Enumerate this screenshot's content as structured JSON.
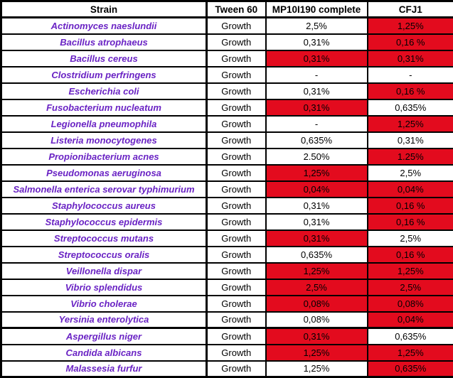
{
  "colors": {
    "highlight_red": "#e30b1e",
    "strain_purple": "#6a23c4",
    "border_black": "#000000",
    "background": "#ffffff"
  },
  "chart_data": {
    "type": "table",
    "title": "Strain growth / inhibition concentrations",
    "columns": [
      "Strain",
      "Tween 60",
      "MP10I190 complete",
      "CFJ1"
    ],
    "highlight_color": "#e30b1e",
    "highlight_meaning": "red-filled cell",
    "rows": [
      {
        "strain": "Actinomyces naeslundii",
        "tween_60": "Growth",
        "mp10i190": "2,5%",
        "mp10i190_red": false,
        "cfj1": "1,25%",
        "cfj1_red": true,
        "group": "bacteria"
      },
      {
        "strain": "Bacillus atrophaeus",
        "tween_60": "Growth",
        "mp10i190": "0,31%",
        "mp10i190_red": false,
        "cfj1": "0,16 %",
        "cfj1_red": true,
        "group": "bacteria"
      },
      {
        "strain": "Bacillus cereus",
        "tween_60": "Growth",
        "mp10i190": "0,31%",
        "mp10i190_red": true,
        "cfj1": "0,31%",
        "cfj1_red": true,
        "group": "bacteria"
      },
      {
        "strain": "Clostridium perfringens",
        "tween_60": "Growth",
        "mp10i190": "-",
        "mp10i190_red": false,
        "cfj1": "-",
        "cfj1_red": false,
        "group": "bacteria"
      },
      {
        "strain": "Escherichia coli",
        "tween_60": "Growth",
        "mp10i190": "0,31%",
        "mp10i190_red": false,
        "cfj1": "0,16 %",
        "cfj1_red": true,
        "group": "bacteria"
      },
      {
        "strain": "Fusobacterium nucleatum",
        "tween_60": "Growth",
        "mp10i190": "0,31%",
        "mp10i190_red": true,
        "cfj1": "0,635%",
        "cfj1_red": false,
        "group": "bacteria"
      },
      {
        "strain": "Legionella pneumophila",
        "tween_60": "Growth",
        "mp10i190": "-",
        "mp10i190_red": false,
        "cfj1": "1,25%",
        "cfj1_red": true,
        "group": "bacteria"
      },
      {
        "strain": "Listeria monocytogenes",
        "tween_60": "Growth",
        "mp10i190": "0,635%",
        "mp10i190_red": false,
        "cfj1": "0,31%",
        "cfj1_red": false,
        "group": "bacteria"
      },
      {
        "strain": "Propionibacterium acnes",
        "tween_60": "Growth",
        "mp10i190": "2.50%",
        "mp10i190_red": false,
        "cfj1": "1.25%",
        "cfj1_red": true,
        "group": "bacteria"
      },
      {
        "strain": "Pseudomonas aeruginosa",
        "tween_60": "Growth",
        "mp10i190": "1,25%",
        "mp10i190_red": true,
        "cfj1": "2,5%",
        "cfj1_red": false,
        "group": "bacteria"
      },
      {
        "strain": "Salmonella enterica serovar typhimurium",
        "tween_60": "Growth",
        "mp10i190": "0,04%",
        "mp10i190_red": true,
        "cfj1": "0,04%",
        "cfj1_red": true,
        "group": "bacteria"
      },
      {
        "strain": "Staphylococcus aureus",
        "tween_60": "Growth",
        "mp10i190": "0,31%",
        "mp10i190_red": false,
        "cfj1": "0,16 %",
        "cfj1_red": true,
        "group": "bacteria"
      },
      {
        "strain": "Staphylococcus epidermis",
        "tween_60": "Growth",
        "mp10i190": "0,31%",
        "mp10i190_red": false,
        "cfj1": "0,16 %",
        "cfj1_red": true,
        "group": "bacteria"
      },
      {
        "strain": "Streptococcus mutans",
        "tween_60": "Growth",
        "mp10i190": "0,31%",
        "mp10i190_red": true,
        "cfj1": "2,5%",
        "cfj1_red": false,
        "group": "bacteria"
      },
      {
        "strain": "Streptococcus oralis",
        "tween_60": "Growth",
        "mp10i190": "0,635%",
        "mp10i190_red": false,
        "cfj1": "0,16 %",
        "cfj1_red": true,
        "group": "bacteria"
      },
      {
        "strain": "Veillonella dispar",
        "tween_60": "Growth",
        "mp10i190": "1,25%",
        "mp10i190_red": true,
        "cfj1": "1,25%",
        "cfj1_red": true,
        "group": "bacteria"
      },
      {
        "strain": "Vibrio splendidus",
        "tween_60": "Growth",
        "mp10i190": "2,5%",
        "mp10i190_red": true,
        "cfj1": "2,5%",
        "cfj1_red": true,
        "group": "bacteria"
      },
      {
        "strain": "Vibrio cholerae",
        "tween_60": "Growth",
        "mp10i190": "0,08%",
        "mp10i190_red": true,
        "cfj1": "0,08%",
        "cfj1_red": true,
        "group": "bacteria"
      },
      {
        "strain": "Yersinia enterolytica",
        "tween_60": "Growth",
        "mp10i190": "0,08%",
        "mp10i190_red": false,
        "cfj1": "0,04%",
        "cfj1_red": true,
        "group": "bacteria"
      },
      {
        "strain": "Aspergillus niger",
        "tween_60": "Growth",
        "mp10i190": "0,31%",
        "mp10i190_red": true,
        "cfj1": "0,635%",
        "cfj1_red": false,
        "group": "fungi",
        "section_start": true
      },
      {
        "strain": "Candida albicans",
        "tween_60": "Growth",
        "mp10i190": "1,25%",
        "mp10i190_red": true,
        "cfj1": "1,25%",
        "cfj1_red": true,
        "group": "fungi"
      },
      {
        "strain": "Malassesia furfur",
        "tween_60": "Growth",
        "mp10i190": "1,25%",
        "mp10i190_red": false,
        "cfj1": "0,635%",
        "cfj1_red": true,
        "group": "fungi"
      }
    ]
  }
}
